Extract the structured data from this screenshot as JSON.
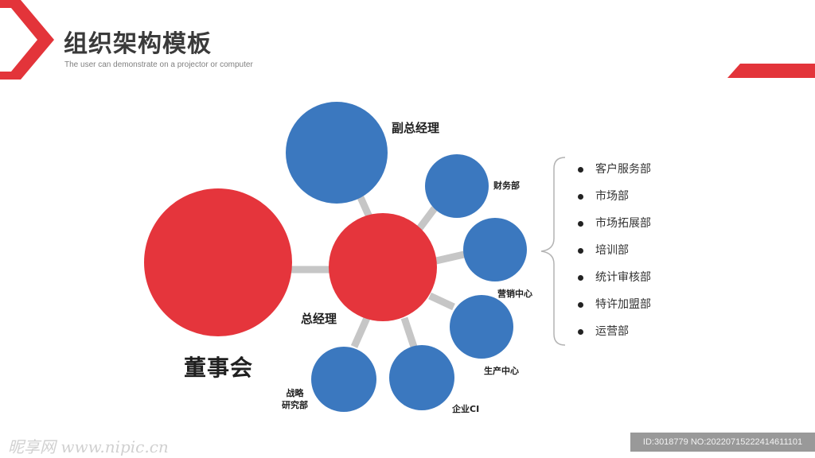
{
  "header": {
    "title": "组织架构模板",
    "subtitle": "The user can demonstrate on a projector or computer"
  },
  "colors": {
    "accent_red": "#e3343a",
    "node_red": "#e5353c",
    "node_blue": "#3b78bf",
    "connector_gray": "#c6c6c6"
  },
  "nodes": {
    "board": "董事会",
    "general_manager": "总经理",
    "deputy_gm": "副总经理",
    "finance": "财务部",
    "marketing_center": "营销中心",
    "production_center": "生产中心",
    "enterprise_ci": "企业CI",
    "strategy_line1": "战略",
    "strategy_line2": "研究部"
  },
  "departments": [
    "客户服务部",
    "市场部",
    "市场拓展部",
    "培训部",
    "统计审核部",
    "特许加盟部",
    "运营部"
  ],
  "watermark": {
    "left": "昵享网 www.nipic.cn",
    "right": "ID:3018779 NO:20220715222414611101"
  }
}
